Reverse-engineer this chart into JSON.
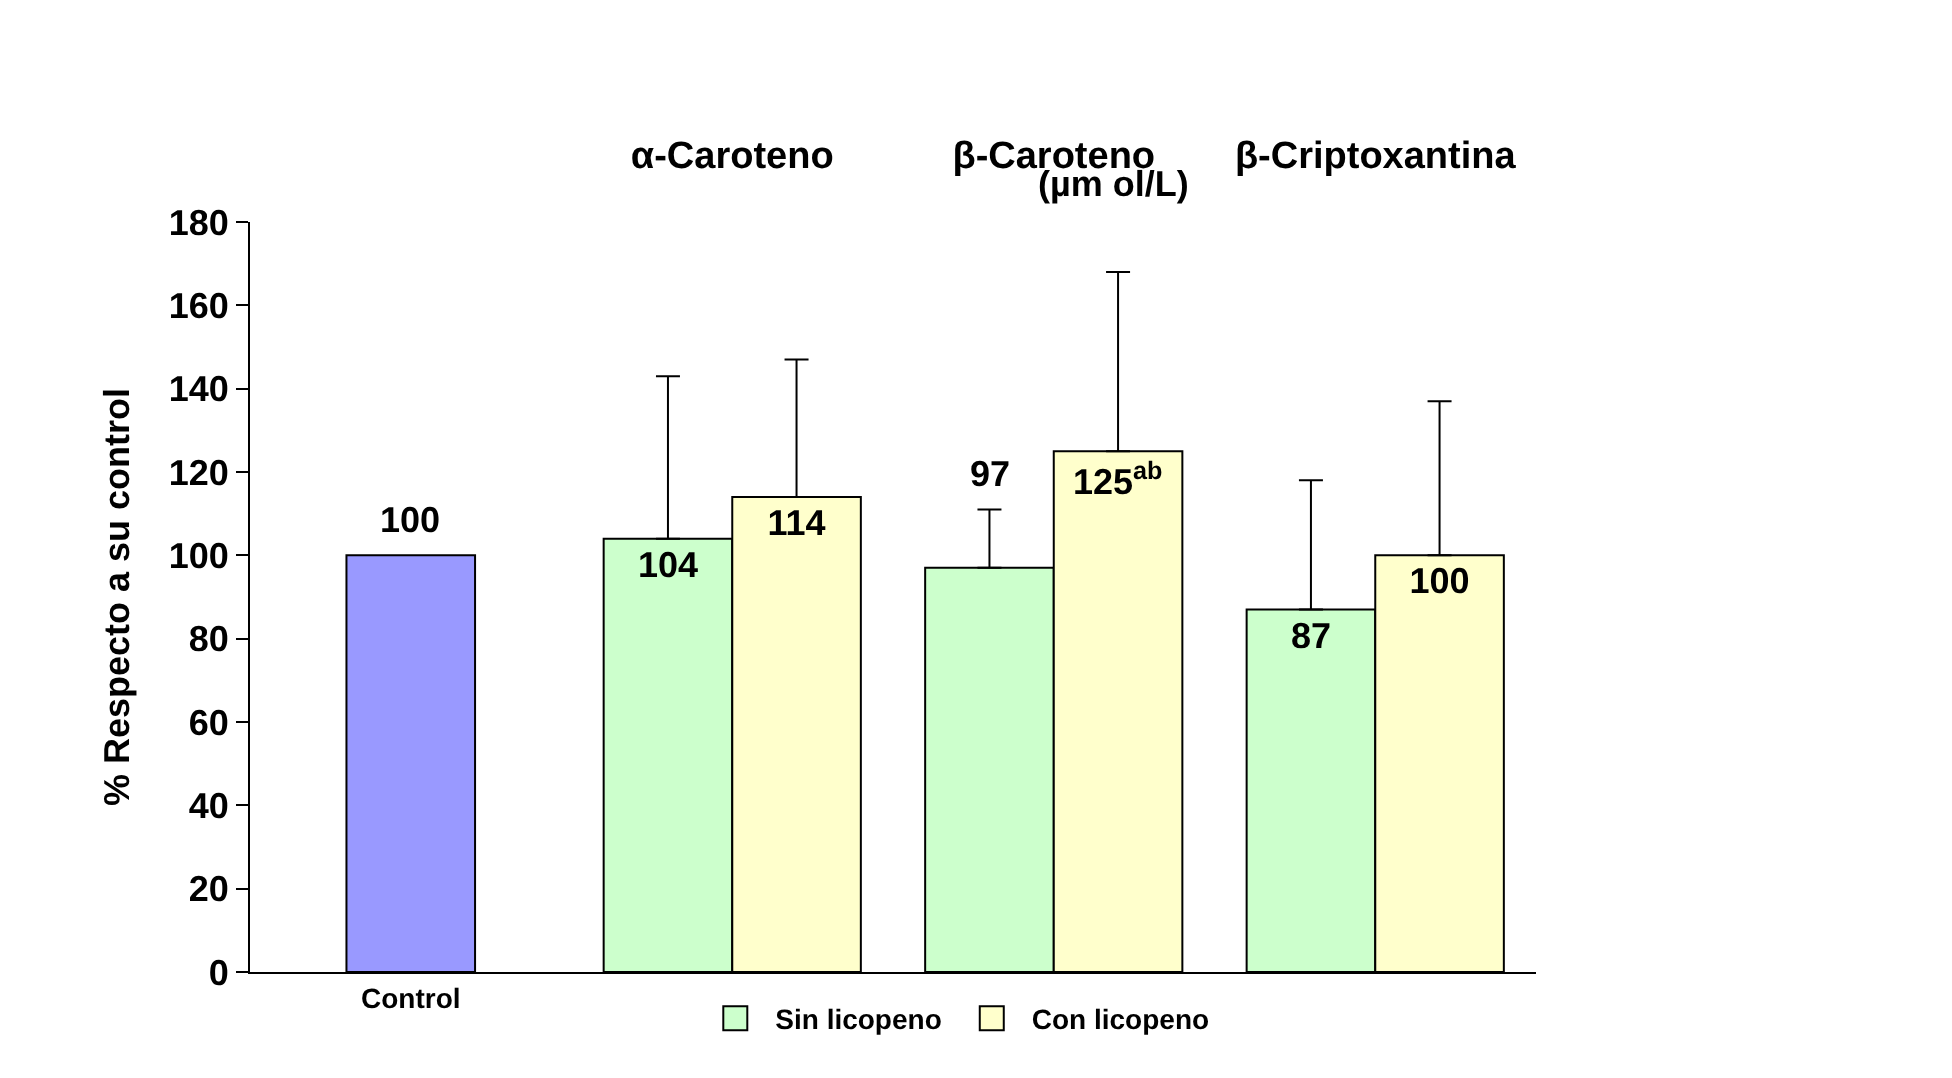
{
  "chart_data": {
    "type": "bar",
    "ylabel": "% Respecto a su control",
    "categories": [
      "Control",
      "α-Caroteno",
      "β-Caroteno",
      "β-Criptoxantina"
    ],
    "series": [
      {
        "color": "#9999ff",
        "values": [
          100,
          null,
          null,
          null
        ],
        "value_labels": [
          "100",
          null,
          null,
          null
        ]
      },
      {
        "name": "Sin licopeno",
        "color": "#ccffcc",
        "values": [
          null,
          104,
          97,
          87
        ],
        "errors": [
          null,
          [
            104,
            143
          ],
          [
            97,
            111
          ],
          [
            87,
            118
          ]
        ],
        "value_labels": [
          null,
          "104",
          "97",
          "87"
        ]
      },
      {
        "name": "Con licopeno",
        "color": "#ffffcc",
        "values": [
          null,
          114,
          125,
          100
        ],
        "errors": [
          null,
          [
            114,
            147
          ],
          [
            125,
            168
          ],
          [
            100,
            137
          ]
        ],
        "value_labels": [
          null,
          "114",
          "125$^{ab}$",
          "100"
        ]
      }
    ],
    "annotations": [
      "(µm ol/L)"
    ],
    "ylim": [
      0,
      180
    ],
    "yticks": [
      0,
      20,
      40,
      60,
      80,
      100,
      120,
      140,
      160,
      180
    ],
    "grid": false,
    "legend": "bottom"
  }
}
